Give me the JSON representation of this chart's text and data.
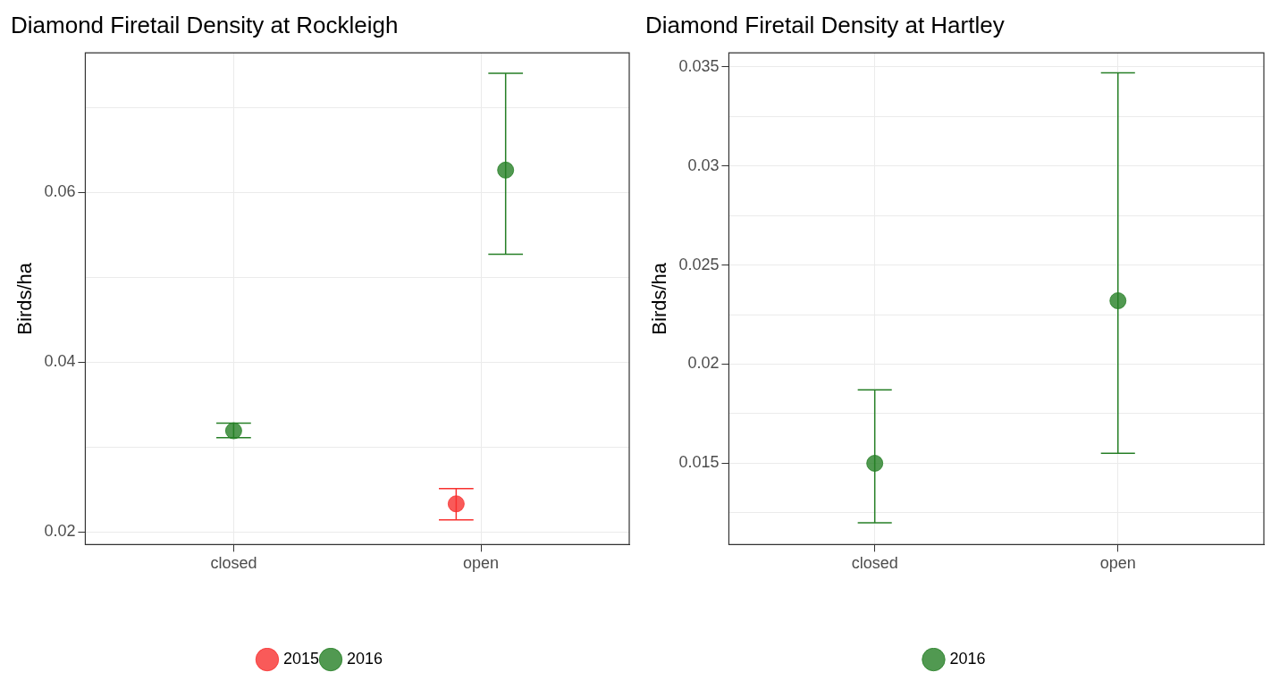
{
  "chart_data": [
    {
      "type": "scatter",
      "title": "Diamond Firetail Density at Rockleigh",
      "ylabel": "Birds/ha",
      "categories": [
        "closed",
        "open"
      ],
      "ylim": [
        0.0185,
        0.0764
      ],
      "yticks": [
        0.02,
        {
          "value": 0.03,
          "label": null
        },
        0.04,
        {
          "value": 0.05,
          "label": null
        },
        0.06,
        {
          "value": 0.07,
          "label": null
        }
      ],
      "grid": true,
      "legend": "bottom",
      "marker": "circle",
      "series": [
        {
          "name": "2015",
          "color": "#f8312f",
          "values": [
            null,
            0.0233
          ],
          "errors": [
            null,
            [
              0.0214,
              0.0251
            ]
          ]
        },
        {
          "name": "2016",
          "color": "#267f26",
          "values": [
            0.0319,
            0.0626
          ],
          "errors": [
            [
              0.0311,
              0.0328
            ],
            [
              0.0527,
              0.074
            ]
          ]
        }
      ]
    },
    {
      "type": "scatter",
      "title": "Diamond Firetail Density at Hartley",
      "ylabel": "Birds/ha",
      "categories": [
        "closed",
        "open"
      ],
      "ylim": [
        0.0109,
        0.0357
      ],
      "yticks": [
        {
          "value": 0.0125,
          "label": null
        },
        0.015,
        {
          "value": 0.0175,
          "label": null
        },
        0.02,
        {
          "value": 0.0225,
          "label": null
        },
        0.025,
        {
          "value": 0.0275,
          "label": null
        },
        0.03,
        {
          "value": 0.0325,
          "label": null
        },
        0.035
      ],
      "grid": true,
      "legend": "bottom",
      "marker": "circle",
      "series": [
        {
          "name": "2016",
          "color": "#267f26",
          "values": [
            0.015,
            0.0232
          ],
          "errors": [
            [
              0.012,
              0.0187
            ],
            [
              0.0155,
              0.0347
            ]
          ]
        }
      ]
    }
  ]
}
